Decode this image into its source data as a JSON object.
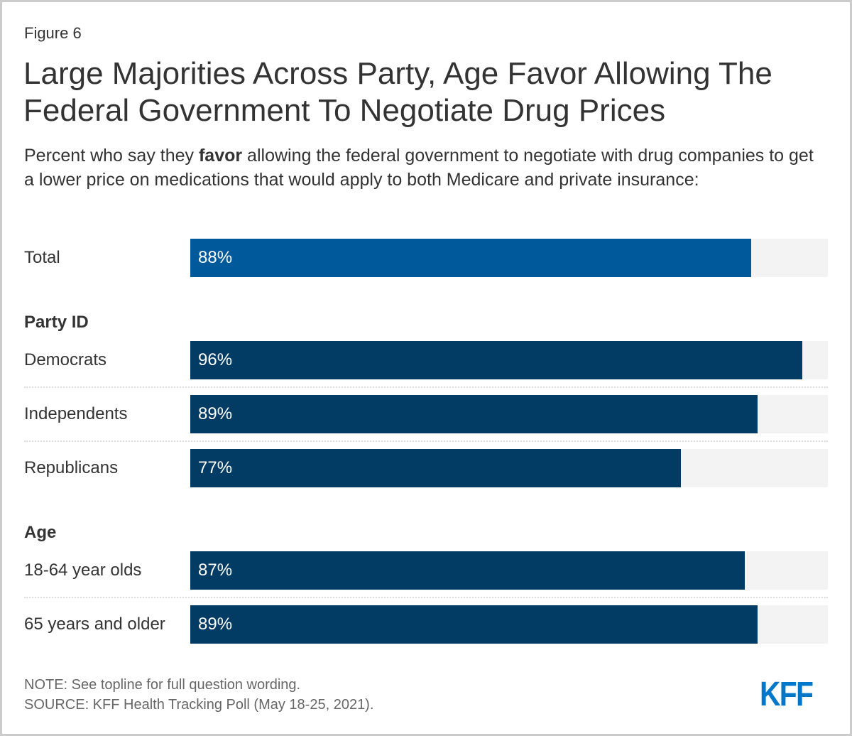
{
  "figure_label": "Figure 6",
  "title": "Large Majorities Across Party, Age Favor Allowing The Federal Government To Negotiate Drug Prices",
  "subtitle": {
    "before": "Percent who say they ",
    "bold": "favor",
    "after": " allowing the federal government to negotiate with drug companies to get a lower price on medications that would apply to both Medicare and private insurance:"
  },
  "colors": {
    "total": "#00599a",
    "group": "#023c65",
    "track": "#f3f3f3",
    "logo": "#0077c8"
  },
  "chart_data": {
    "type": "bar",
    "orientation": "horizontal",
    "title": "Large Majorities Across Party, Age Favor Allowing The Federal Government To Negotiate Drug Prices",
    "xlim": [
      0,
      100
    ],
    "unit": "%",
    "groups": [
      {
        "name": "",
        "rows": [
          {
            "label": "Total",
            "value": 88,
            "display": "88%"
          }
        ]
      },
      {
        "name": "Party ID",
        "rows": [
          {
            "label": "Democrats",
            "value": 96,
            "display": "96%"
          },
          {
            "label": "Independents",
            "value": 89,
            "display": "89%"
          },
          {
            "label": "Republicans",
            "value": 77,
            "display": "77%"
          }
        ]
      },
      {
        "name": "Age",
        "rows": [
          {
            "label": "18-64 year olds",
            "value": 87,
            "display": "87%"
          },
          {
            "label": "65 years and older",
            "value": 89,
            "display": "89%"
          }
        ]
      }
    ]
  },
  "footer": {
    "note": "NOTE: See topline for full question wording.",
    "source": "SOURCE: KFF Health Tracking Poll (May 18-25, 2021).",
    "logo": "KFF"
  }
}
